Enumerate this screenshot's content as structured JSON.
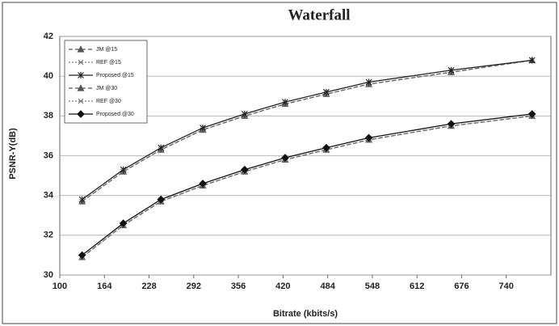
{
  "chart_data": {
    "type": "line",
    "title": "Waterfall",
    "x_label": "Bitrate (kbits/s)",
    "y_label": "PSNR-Y(dB)",
    "x": [
      132,
      191,
      245,
      305,
      365,
      423,
      482,
      543,
      661,
      777
    ],
    "series": [
      {
        "name": "JM @15",
        "color": "#555555",
        "dash": "5,3",
        "marker": "triangle",
        "values": [
          33.7,
          35.2,
          36.3,
          37.3,
          38.0,
          38.6,
          39.1,
          39.6,
          40.2,
          40.8
        ]
      },
      {
        "name": "REF @15",
        "color": "#777777",
        "dash": "2,2",
        "marker": "x",
        "values": [
          33.7,
          35.2,
          36.3,
          37.3,
          38.0,
          38.6,
          39.1,
          39.6,
          40.2,
          40.8
        ]
      },
      {
        "name": "Proposed @15",
        "color": "#222222",
        "dash": "",
        "marker": "star",
        "values": [
          33.8,
          35.3,
          36.4,
          37.4,
          38.1,
          38.7,
          39.2,
          39.7,
          40.3,
          40.8
        ]
      },
      {
        "name": "JM @30",
        "color": "#555555",
        "dash": "5,3",
        "marker": "triangle",
        "values": [
          30.9,
          32.5,
          33.7,
          34.5,
          35.2,
          35.8,
          36.3,
          36.8,
          37.5,
          38.0
        ]
      },
      {
        "name": "REF @30",
        "color": "#777777",
        "dash": "2,2",
        "marker": "x",
        "values": [
          30.9,
          32.5,
          33.7,
          34.5,
          35.2,
          35.8,
          36.3,
          36.8,
          37.5,
          38.0
        ]
      },
      {
        "name": "Proposed @30",
        "color": "#111111",
        "dash": "",
        "marker": "diamond",
        "values": [
          31.0,
          32.6,
          33.8,
          34.6,
          35.3,
          35.9,
          36.4,
          36.9,
          37.6,
          38.1
        ]
      }
    ],
    "xlim": [
      100,
      804
    ],
    "xticks": [
      100,
      164,
      228,
      292,
      356,
      420,
      484,
      548,
      612,
      676,
      740
    ],
    "ylim": [
      30,
      42
    ],
    "yticks": [
      30,
      32,
      34,
      36,
      38,
      40,
      42
    ],
    "grid": true,
    "legend": "upper left"
  }
}
